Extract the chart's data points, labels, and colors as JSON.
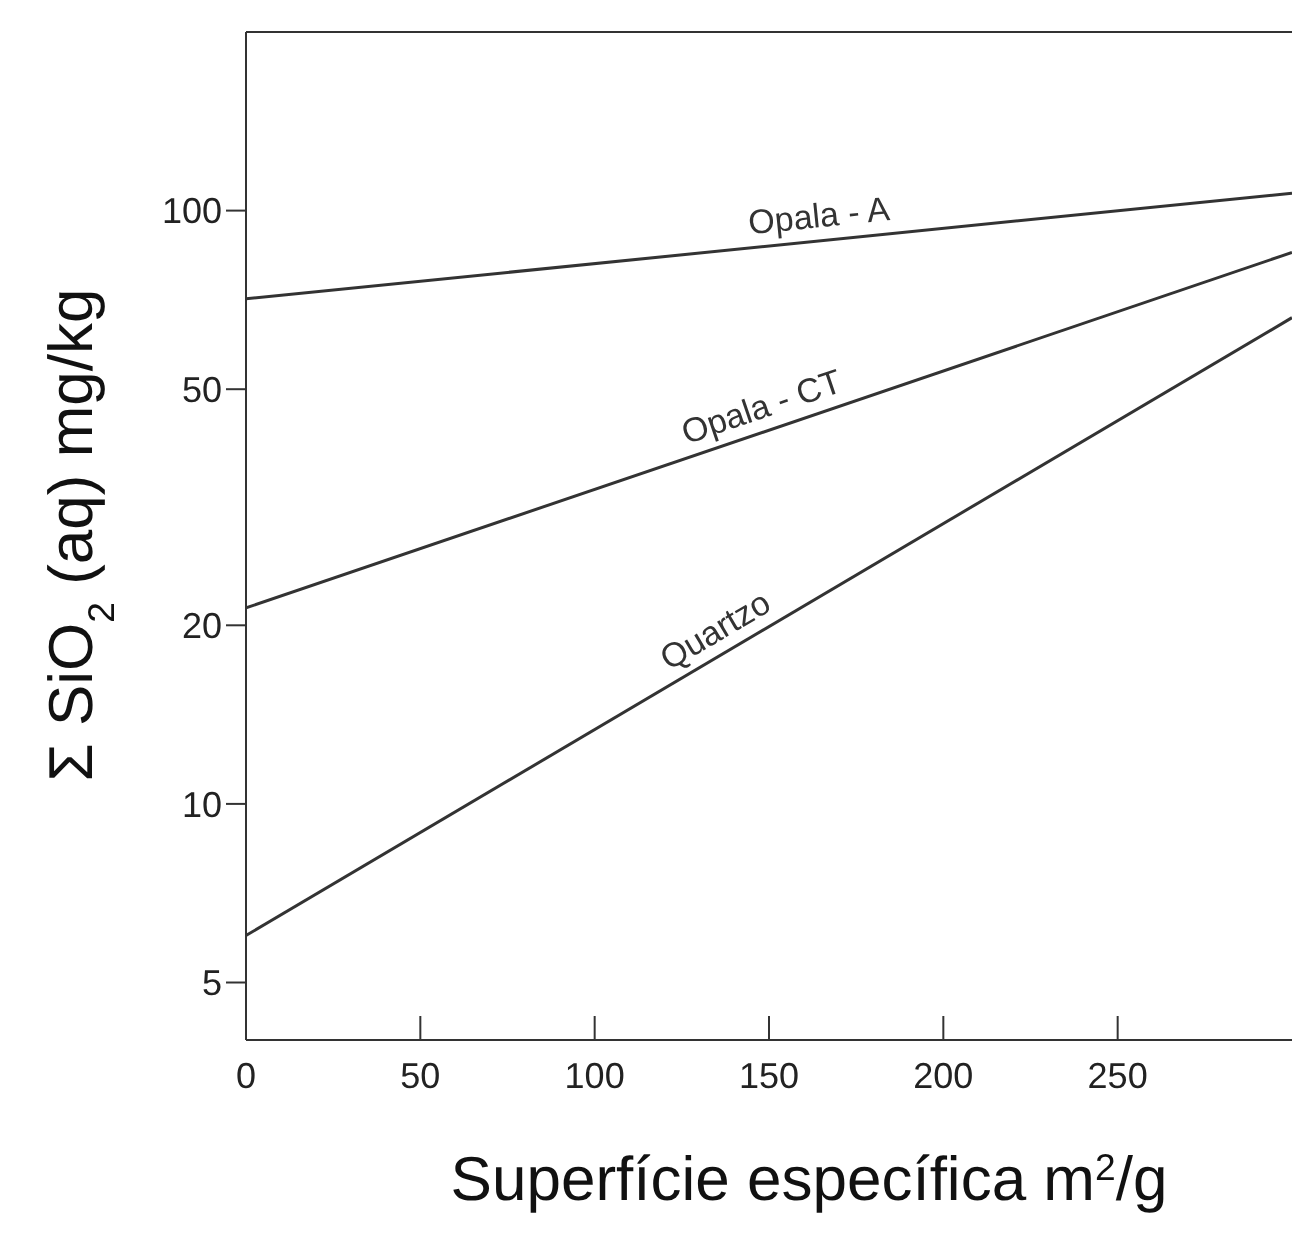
{
  "chart_data": {
    "type": "line",
    "xlabel": "Superfície específica m$^{2}$/g",
    "ylabel": "Σ SiO$_{2}$ (aq) mg/kg",
    "log": "y",
    "xlim": [
      0,
      300
    ],
    "xticks": [
      0,
      50,
      100,
      150,
      200,
      250
    ],
    "ylim": [
      4,
      200
    ],
    "yticks": [
      5,
      10,
      20,
      50,
      100
    ],
    "marker": "none",
    "line_style": "solid",
    "x": [
      0,
      300
    ],
    "series": [
      {
        "name": "Opala - A",
        "color": "#333333",
        "values": [
          71,
          107
        ]
      },
      {
        "name": "Opala - CT",
        "color": "#333333",
        "values": [
          21.4,
          85
        ]
      },
      {
        "name": "Quartzo",
        "color": "#333333",
        "values": [
          6,
          66
        ]
      }
    ]
  }
}
